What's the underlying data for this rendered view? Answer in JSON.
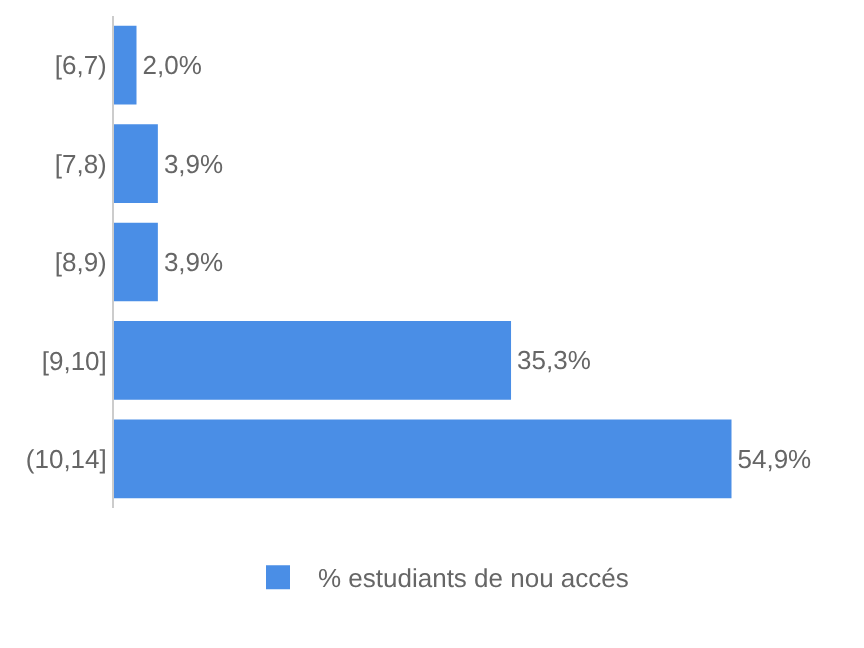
{
  "chart_data": {
    "type": "bar",
    "orientation": "horizontal",
    "categories": [
      "[6,7)",
      "[7,8)",
      "[8,9)",
      "[9,10]",
      "(10,14]"
    ],
    "series": [
      {
        "name": "% estudiants de nou accés",
        "color": "#4a8ee6",
        "values": [
          2.0,
          3.9,
          3.9,
          35.3,
          54.9
        ],
        "value_labels": [
          "2,0%",
          "3,9%",
          "3,9%",
          "35,3%",
          "54,9%"
        ]
      }
    ],
    "tick_labels": "y",
    "legend": "bottom"
  }
}
